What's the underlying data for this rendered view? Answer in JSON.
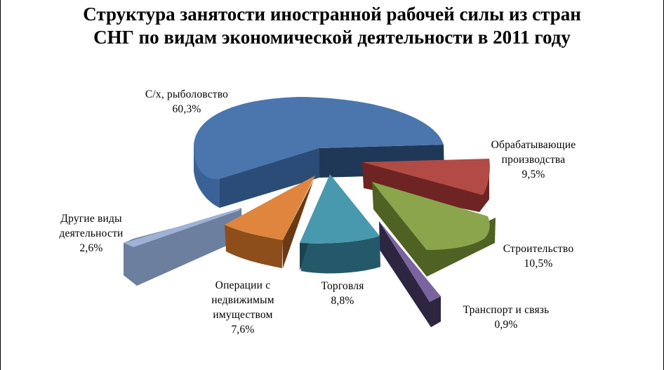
{
  "title": {
    "line1": "Структура занятости иностранной рабочей силы из стран",
    "line2": "СНГ по видам экономической деятельности в 2011 году"
  },
  "chart_data": {
    "type": "pie",
    "exploded": true,
    "three_d": true,
    "title": "Структура занятости иностранной рабочей силы из стран СНГ по видам экономической деятельности в 2011 году",
    "slices": [
      {
        "id": "agri",
        "label_lines": [
          "С/х, рыболовство"
        ],
        "value": 60.3,
        "value_label": "60,3%",
        "color": "#4a76ad",
        "side": "#2c4c78",
        "shadow": "#1f3857"
      },
      {
        "id": "manufacturing",
        "label_lines": [
          "Обрабатывающие",
          "производства"
        ],
        "value": 9.5,
        "value_label": "9,5%",
        "color": "#b24a45",
        "side": "#6d2422",
        "shadow": "#4a1716"
      },
      {
        "id": "construction",
        "label_lines": [
          "Строительство"
        ],
        "value": 10.5,
        "value_label": "10,5%",
        "color": "#8aa54c",
        "side": "#4f6224",
        "shadow": "#3a4a17"
      },
      {
        "id": "transport",
        "label_lines": [
          "Транспорт и связь"
        ],
        "value": 0.9,
        "value_label": "0,9%",
        "color": "#7a64a0",
        "side": "#2e2540",
        "shadow": "#231c30"
      },
      {
        "id": "trade",
        "label_lines": [
          "Торговля"
        ],
        "value": 8.8,
        "value_label": "8,8%",
        "color": "#4899ad",
        "side": "#24596a",
        "shadow": "#1b4450"
      },
      {
        "id": "real-estate",
        "label_lines": [
          "Операции с",
          "недвижимым",
          "имуществом"
        ],
        "value": 7.6,
        "value_label": "7,6%",
        "color": "#e0853e",
        "side": "#8d4e1c",
        "shadow": "#6a3a14"
      },
      {
        "id": "other",
        "label_lines": [
          "Другие виды",
          "деятельности"
        ],
        "value": 2.6,
        "value_label": "2,6%",
        "color": "#9db2d6",
        "side": "#6d7f9e",
        "shadow": "#54627a"
      }
    ]
  }
}
